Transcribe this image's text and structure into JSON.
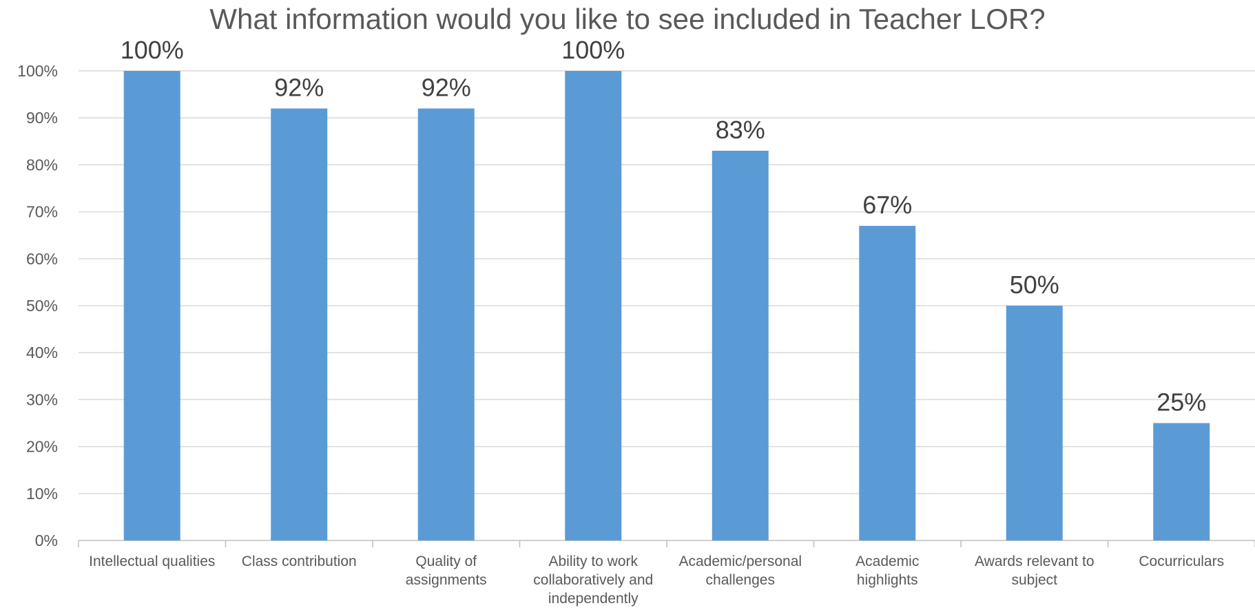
{
  "chart_data": {
    "type": "bar",
    "title": "What information would you like to see included in Teacher LOR?",
    "xlabel": "",
    "ylabel": "",
    "categories": [
      "Intellectual qualities",
      "Class contribution",
      "Quality of assignments",
      "Ability to work collaboratively and independently",
      "Academic/personal challenges",
      "Academic highlights",
      "Awards relevant to subject",
      "Cocurriculars"
    ],
    "category_lines": [
      [
        "Intellectual qualities"
      ],
      [
        "Class contribution"
      ],
      [
        "Quality of",
        "assignments"
      ],
      [
        "Ability to work",
        "collaboratively and",
        "independently"
      ],
      [
        "Academic/personal",
        "challenges"
      ],
      [
        "Academic",
        "highlights"
      ],
      [
        "Awards relevant to",
        "subject"
      ],
      [
        "Cocurriculars"
      ]
    ],
    "values": [
      100,
      92,
      92,
      100,
      83,
      67,
      50,
      25
    ],
    "data_labels": [
      "100%",
      "92%",
      "92%",
      "100%",
      "83%",
      "67%",
      "50%",
      "25%"
    ],
    "ylim": [
      0,
      100
    ],
    "yticks": [
      0,
      10,
      20,
      30,
      40,
      50,
      60,
      70,
      80,
      90,
      100
    ],
    "ytick_labels": [
      "0%",
      "10%",
      "20%",
      "30%",
      "40%",
      "50%",
      "60%",
      "70%",
      "80%",
      "90%",
      "100%"
    ],
    "grid": true,
    "legend": "none",
    "colors": {
      "bar": "#5b9bd5",
      "grid": "#d9d9d9",
      "axis": "#bfbfbf",
      "text": "#595959",
      "label": "#404040"
    }
  }
}
